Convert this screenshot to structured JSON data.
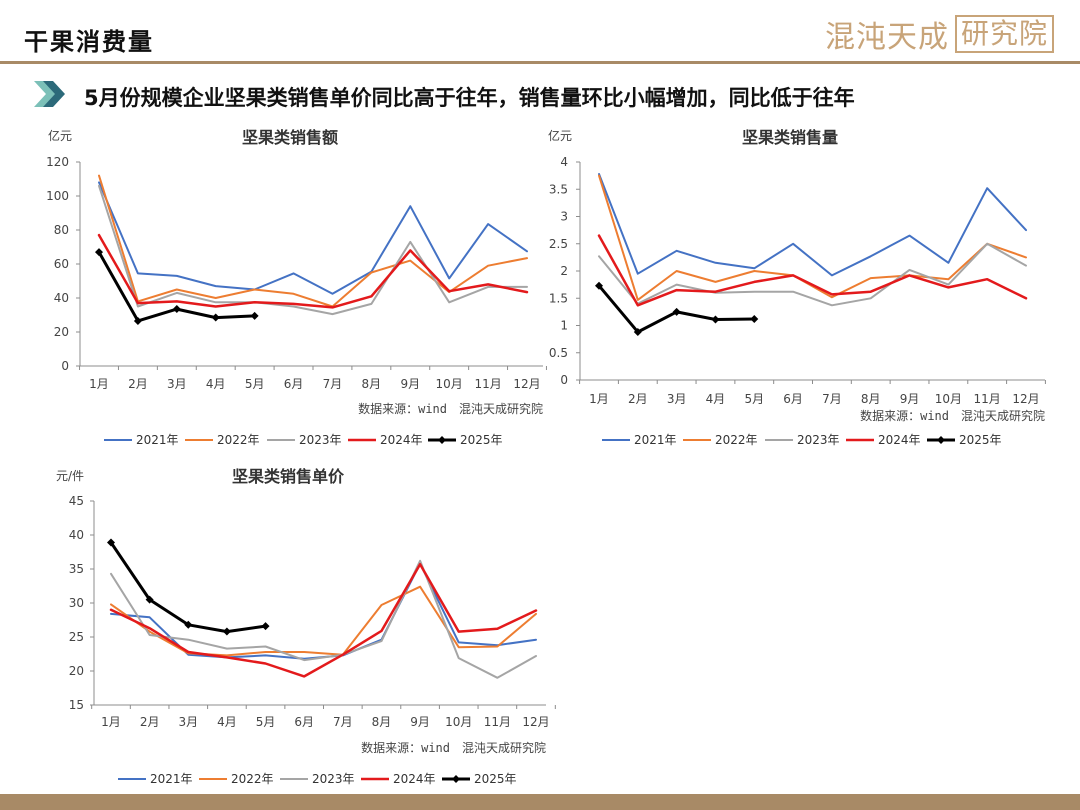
{
  "page": {
    "title": "干果消费量",
    "logo_text": "混沌天成",
    "logo_box_text": "研究院",
    "subtitle": "5月份规模企业坚果类销售单价同比高于往年，销售量环比小幅增加，同比低于往年",
    "colors": {
      "rule": "#a88a66",
      "logo": "#c8a479",
      "arrow_light": "#7cc0b8",
      "arrow_dark": "#2c6a7a"
    }
  },
  "chart_data": [
    {
      "type": "line",
      "title": "坚果类销售额",
      "unit": "亿元",
      "source": "数据来源：wind　混沌天成研究院",
      "categories": [
        "1月",
        "2月",
        "3月",
        "4月",
        "5月",
        "6月",
        "7月",
        "8月",
        "9月",
        "10月",
        "11月",
        "12月"
      ],
      "ylim": [
        0,
        120
      ],
      "yticks": [
        0,
        20,
        40,
        60,
        80,
        100,
        120
      ],
      "ytick_labels": [
        "0",
        "20",
        "40",
        "60",
        "80",
        "100",
        "120"
      ],
      "grid": false,
      "legend": "bottom",
      "series": [
        {
          "name": "2021年",
          "color": "#4472c4",
          "width": 2,
          "values": [
            108,
            54.5,
            53,
            47,
            45,
            54.5,
            42.5,
            55.5,
            94,
            51.5,
            83.5,
            67.5
          ]
        },
        {
          "name": "2022年",
          "color": "#ed7d31",
          "width": 2,
          "values": [
            112,
            38,
            45,
            40,
            45,
            42.5,
            35,
            55,
            62,
            43.5,
            59,
            63.5
          ]
        },
        {
          "name": "2023年",
          "color": "#a5a5a5",
          "width": 2,
          "values": [
            106,
            35,
            43,
            37.5,
            37.5,
            35,
            30.5,
            36.5,
            73,
            37.5,
            46.5,
            46.5
          ]
        },
        {
          "name": "2024年",
          "color": "#e31a1c",
          "width": 2.5,
          "values": [
            77,
            37,
            38,
            35,
            37.5,
            36.5,
            34.5,
            41,
            68,
            44,
            48,
            43.5
          ]
        },
        {
          "name": "2025年",
          "color": "#000000",
          "width": 3,
          "marker": true,
          "values": [
            67,
            26.5,
            33.5,
            28.5,
            29.5,
            null,
            null,
            null,
            null,
            null,
            null,
            null
          ]
        }
      ]
    },
    {
      "type": "line",
      "title": "坚果类销售量",
      "unit": "亿元",
      "source": "数据来源：wind　混沌天成研究院",
      "categories": [
        "1月",
        "2月",
        "3月",
        "4月",
        "5月",
        "6月",
        "7月",
        "8月",
        "9月",
        "10月",
        "11月",
        "12月"
      ],
      "ylim": [
        0,
        4
      ],
      "yticks": [
        0,
        0.5,
        1,
        1.5,
        2,
        2.5,
        3,
        3.5,
        4
      ],
      "ytick_labels": [
        "0",
        "0.5",
        "1",
        "1.5",
        "2",
        "2.5",
        "3",
        "3.5",
        "4"
      ],
      "grid": false,
      "legend": "bottom",
      "series": [
        {
          "name": "2021年",
          "color": "#4472c4",
          "width": 2,
          "values": [
            3.78,
            1.95,
            2.37,
            2.15,
            2.05,
            2.5,
            1.92,
            2.27,
            2.65,
            2.15,
            3.52,
            2.75
          ]
        },
        {
          "name": "2022年",
          "color": "#ed7d31",
          "width": 2,
          "values": [
            3.75,
            1.47,
            2.0,
            1.8,
            2.0,
            1.92,
            1.52,
            1.87,
            1.92,
            1.85,
            2.5,
            2.25
          ]
        },
        {
          "name": "2023年",
          "color": "#a5a5a5",
          "width": 2,
          "values": [
            2.27,
            1.4,
            1.75,
            1.6,
            1.62,
            1.62,
            1.37,
            1.5,
            2.02,
            1.75,
            2.5,
            2.1
          ]
        },
        {
          "name": "2024年",
          "color": "#e31a1c",
          "width": 2.5,
          "values": [
            2.65,
            1.37,
            1.65,
            1.62,
            1.8,
            1.92,
            1.57,
            1.62,
            1.92,
            1.7,
            1.85,
            1.5
          ]
        },
        {
          "name": "2025年",
          "color": "#000000",
          "width": 3,
          "marker": true,
          "values": [
            1.73,
            0.88,
            1.25,
            1.11,
            1.12,
            null,
            null,
            null,
            null,
            null,
            null,
            null
          ]
        }
      ]
    },
    {
      "type": "line",
      "title": "坚果类销售单价",
      "unit": "元/件",
      "source": "数据来源：wind　混沌天成研究院",
      "categories": [
        "1月",
        "2月",
        "3月",
        "4月",
        "5月",
        "6月",
        "7月",
        "8月",
        "9月",
        "10月",
        "11月",
        "12月"
      ],
      "ylim": [
        15,
        45
      ],
      "yticks": [
        15,
        20,
        25,
        30,
        35,
        40,
        45
      ],
      "ytick_labels": [
        "15",
        "20",
        "25",
        "30",
        "35",
        "40",
        "45"
      ],
      "grid": false,
      "legend": "bottom",
      "series": [
        {
          "name": "2021年",
          "color": "#4472c4",
          "width": 2,
          "values": [
            28.4,
            27.9,
            22.4,
            22.0,
            22.3,
            21.8,
            22.3,
            24.6,
            35.8,
            24.2,
            23.8,
            24.6
          ]
        },
        {
          "name": "2022年",
          "color": "#ed7d31",
          "width": 2,
          "values": [
            29.8,
            25.8,
            22.6,
            22.3,
            22.8,
            22.8,
            22.4,
            29.7,
            32.4,
            23.5,
            23.6,
            28.4
          ]
        },
        {
          "name": "2023年",
          "color": "#a5a5a5",
          "width": 2,
          "values": [
            34.3,
            25.3,
            24.6,
            23.3,
            23.6,
            21.6,
            22.4,
            24.4,
            36.2,
            21.9,
            19.0,
            22.2
          ]
        },
        {
          "name": "2024年",
          "color": "#e31a1c",
          "width": 2.5,
          "values": [
            29.0,
            26.3,
            22.8,
            22.0,
            21.1,
            19.2,
            22.4,
            25.9,
            35.7,
            25.8,
            26.2,
            28.9
          ]
        },
        {
          "name": "2025年",
          "color": "#000000",
          "width": 3,
          "marker": true,
          "values": [
            38.9,
            30.5,
            26.8,
            25.8,
            26.6,
            null,
            null,
            null,
            null,
            null,
            null,
            null
          ]
        }
      ]
    }
  ]
}
